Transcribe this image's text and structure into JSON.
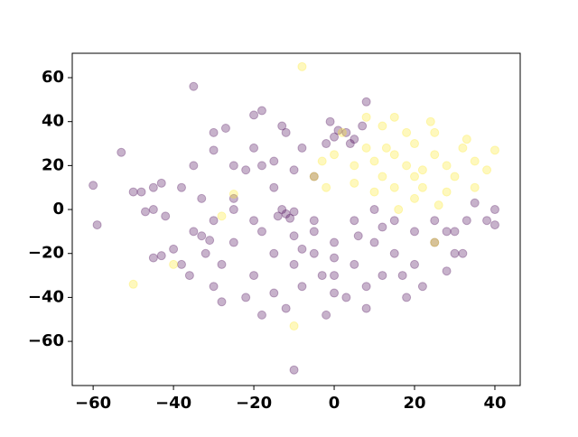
{
  "chart_data": {
    "type": "scatter",
    "xlim": [
      -65.2,
      46.3
    ],
    "ylim": [
      -80.1,
      71.1
    ],
    "xticks": [
      {
        "value": -60,
        "label": "−60"
      },
      {
        "value": -40,
        "label": "−40"
      },
      {
        "value": -20,
        "label": "−20"
      },
      0,
      20,
      40
    ],
    "yticks": [
      {
        "value": -60,
        "label": "−60"
      },
      {
        "value": -40,
        "label": "−40"
      },
      {
        "value": -20,
        "label": "−20"
      },
      0,
      20,
      40,
      60
    ],
    "alpha": 0.3,
    "series": [
      {
        "color": "#440154",
        "x": [
          -5,
          0,
          5,
          -10,
          -15,
          10,
          15,
          -20,
          -8,
          0,
          8,
          12,
          20,
          25,
          -25,
          -18,
          -5,
          5,
          15,
          25,
          30,
          -22,
          -12,
          -2,
          8,
          18,
          -28,
          -15,
          3,
          22,
          28,
          -25,
          -20,
          10,
          20,
          -30,
          -5,
          0,
          -10,
          12,
          -3,
          17,
          -18,
          0,
          -8,
          6,
          30,
          -32,
          -12,
          -14,
          -10,
          -13,
          -11,
          0,
          3,
          5,
          -2,
          1,
          4,
          -1,
          7,
          -20,
          -18,
          -13,
          -12,
          -30,
          -27,
          -25,
          -22,
          -18,
          -15,
          -20,
          -8,
          -10,
          -5,
          -15,
          -25,
          -35,
          -33,
          -38,
          -30,
          -45,
          -48,
          -43,
          -47,
          -45,
          -42,
          -33,
          -35,
          -31,
          -45,
          -43,
          -40,
          -50,
          -38,
          -36,
          38,
          40,
          35,
          40,
          33,
          28,
          32,
          -60,
          -59,
          -53,
          -35,
          -10,
          8,
          -30,
          -28
        ],
        "values": [
          -20,
          -15,
          -25,
          -25,
          -20,
          -15,
          -20,
          -30,
          -35,
          -30,
          -35,
          -30,
          -25,
          -15,
          -15,
          -10,
          -5,
          -5,
          -5,
          -5,
          -20,
          -40,
          -45,
          -48,
          -45,
          -40,
          -25,
          -38,
          -40,
          -35,
          -28,
          0,
          -5,
          0,
          -10,
          -35,
          -10,
          -22,
          -12,
          -8,
          -30,
          -30,
          -48,
          -38,
          -18,
          -12,
          -10,
          -20,
          -2,
          -3,
          -1,
          0,
          -4,
          33,
          35,
          32,
          30,
          36,
          30,
          40,
          38,
          43,
          45,
          38,
          35,
          35,
          37,
          20,
          18,
          20,
          22,
          28,
          28,
          18,
          15,
          10,
          5,
          20,
          5,
          10,
          -5,
          10,
          8,
          12,
          -1,
          0,
          -3,
          -12,
          -10,
          -14,
          -22,
          -21,
          -18,
          8,
          -25,
          -30,
          -5,
          -7,
          3,
          0,
          -5,
          -10,
          -20,
          11,
          -7,
          26,
          56,
          -73,
          49,
          27,
          -42
        ]
      },
      {
        "color": "#fde725",
        "x": [
          18,
          15,
          22,
          10,
          25,
          12,
          20,
          28,
          8,
          30,
          15,
          22,
          5,
          35,
          18,
          12,
          25,
          32,
          38,
          20,
          10,
          -3,
          -5,
          0,
          28,
          15,
          24,
          35,
          40,
          -2,
          5,
          16,
          26,
          8,
          33,
          20,
          13,
          2,
          -8,
          -50,
          -10,
          -25,
          -28,
          25,
          -40
        ],
        "values": [
          20,
          25,
          18,
          22,
          25,
          15,
          30,
          20,
          28,
          15,
          10,
          10,
          20,
          22,
          35,
          38,
          35,
          28,
          18,
          5,
          8,
          22,
          15,
          25,
          8,
          42,
          40,
          10,
          27,
          10,
          12,
          0,
          2,
          42,
          32,
          15,
          28,
          35,
          65,
          -34,
          -53,
          7,
          -3,
          -15,
          -25
        ]
      }
    ]
  }
}
